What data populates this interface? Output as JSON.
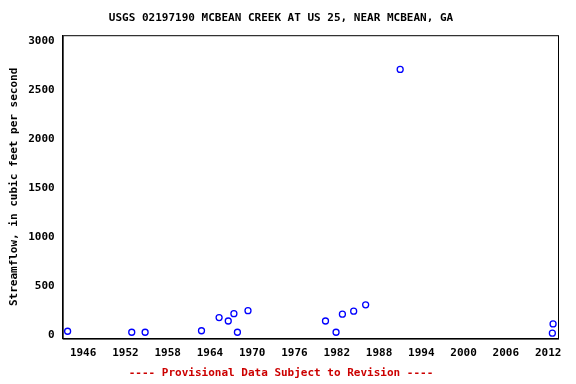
{
  "chart_data": {
    "type": "scatter",
    "title": "USGS 02197190 MCBEAN CREEK AT US 25, NEAR MCBEAN, GA",
    "y_label": "Streamflow, in cubic feet per second",
    "annotations": [
      "---- Provisional Data Subject to Revision ----"
    ],
    "x": [
      1943.8,
      1952.9,
      1954.8,
      1962.8,
      1965.3,
      1966.6,
      1967.4,
      1967.9,
      1969.4,
      1980.4,
      1981.9,
      1982.8,
      1984.4,
      1986.1,
      1991.0,
      2012.6,
      2012.7
    ],
    "values": [
      35,
      25,
      25,
      40,
      175,
      140,
      215,
      25,
      245,
      140,
      25,
      210,
      240,
      305,
      2710,
      15,
      110
    ],
    "color": "#0000ff",
    "marker": "circle",
    "xlim": [
      1943.1,
      2013.4
    ],
    "xticks": [
      1946,
      1952,
      1958,
      1964,
      1970,
      1976,
      1982,
      1988,
      1994,
      2000,
      2006,
      2012
    ],
    "ylim": [
      -40,
      3060
    ],
    "yticks": [
      0,
      500,
      1000,
      1500,
      2000,
      2500,
      3000
    ],
    "grid": false
  }
}
